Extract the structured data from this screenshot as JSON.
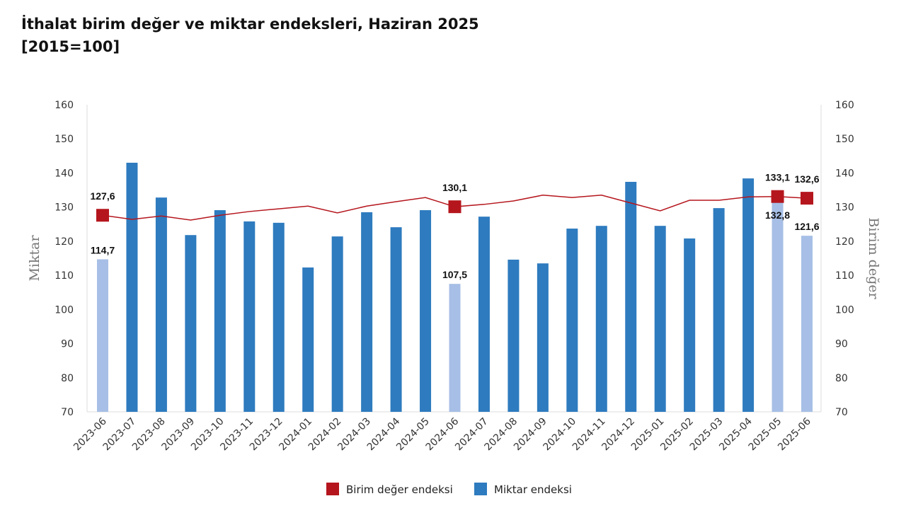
{
  "chart_data": {
    "type": "bar+line",
    "title": "İthalat birim değer ve miktar endeksleri, Haziran 2025",
    "subtitle": "[2015=100]",
    "ylabel_left": "Miktar",
    "ylabel_right": "Birim değer",
    "ylim": [
      70,
      160
    ],
    "yticks": [
      70,
      80,
      90,
      100,
      110,
      120,
      130,
      140,
      150,
      160
    ],
    "grid": false,
    "legend_position": "bottom",
    "categories": [
      "2023-06",
      "2023-07",
      "2023-08",
      "2023-09",
      "2023-10",
      "2023-11",
      "2023-12",
      "2024-01",
      "2024-02",
      "2024-03",
      "2024-04",
      "2024-05",
      "2024-06",
      "2024-07",
      "2024-08",
      "2024-09",
      "2024-10",
      "2024-11",
      "2024-12",
      "2025-01",
      "2025-02",
      "2025-03",
      "2025-04",
      "2025-05",
      "2025-06"
    ],
    "series": [
      {
        "name": "Birim değer endeksi",
        "type": "line",
        "color": "#b5161d",
        "values": [
          127.6,
          126.4,
          127.4,
          126.2,
          127.6,
          128.7,
          129.5,
          130.3,
          128.3,
          130.3,
          131.6,
          132.8,
          130.1,
          130.8,
          131.8,
          133.5,
          132.8,
          133.5,
          131.2,
          128.9,
          132.0,
          132.0,
          133.0,
          133.1,
          132.6
        ],
        "labels": {
          "0": "127,6",
          "12": "130,1",
          "23": "133,1",
          "24": "132,6"
        }
      },
      {
        "name": "Miktar endeksi",
        "type": "bar",
        "color": "#2e7bbf",
        "highlight_color": "#a7bfe6",
        "highlighted": [
          0,
          12,
          23,
          24
        ],
        "values": [
          114.7,
          143.0,
          132.8,
          121.8,
          129.1,
          125.8,
          125.4,
          112.3,
          121.4,
          128.5,
          124.1,
          129.1,
          107.5,
          127.2,
          114.6,
          113.5,
          123.7,
          124.5,
          137.4,
          124.5,
          120.8,
          129.7,
          138.4,
          132.8,
          121.6
        ],
        "labels": {
          "0": "114,7",
          "12": "107,5",
          "23": "132,8",
          "24": "121,6"
        }
      }
    ]
  }
}
